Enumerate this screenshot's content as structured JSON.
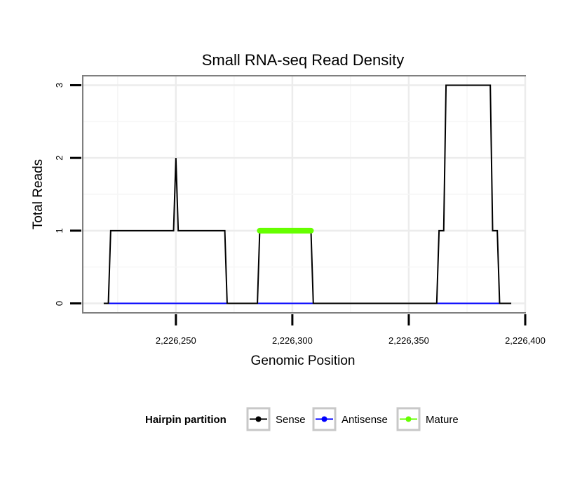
{
  "chart_data": {
    "type": "line",
    "title": "Small RNA-seq Read Density",
    "xlabel": "Genomic Position",
    "ylabel": "Total Reads",
    "xlim": [
      2226210,
      2226400
    ],
    "ylim": [
      -0.13,
      3.13
    ],
    "x_ticks": [
      2226250,
      2226300,
      2226350,
      2226400
    ],
    "x_tick_labels": [
      "2,226,250",
      "2,226,300",
      "2,226,350",
      "2,226,400"
    ],
    "y_ticks": [
      0,
      1,
      2,
      3
    ],
    "y_tick_labels": [
      "0",
      "1",
      "2",
      "3"
    ],
    "grid": true,
    "legend": {
      "title": "Hairpin partition",
      "position": "bottom",
      "entries": [
        "Sense",
        "Antisense",
        "Mature"
      ]
    },
    "series": [
      {
        "name": "Sense",
        "color": "#000000",
        "x": [
          2226219,
          2226221,
          2226222,
          2226248,
          2226249,
          2226250,
          2226251,
          2226252,
          2226271,
          2226272,
          2226285,
          2226286,
          2226308,
          2226309,
          2226362,
          2226363,
          2226365,
          2226366,
          2226367,
          2226385,
          2226386,
          2226388,
          2226389,
          2226390,
          2226394
        ],
        "values": [
          0,
          0,
          1,
          1,
          1,
          2,
          1,
          1,
          1,
          0,
          0,
          1,
          1,
          0,
          0,
          1,
          1,
          3,
          3,
          3,
          1,
          1,
          0,
          0,
          0
        ]
      },
      {
        "name": "Antisense",
        "color": "#0000ff",
        "x": [
          2226221,
          2226390
        ],
        "values": [
          0,
          0
        ]
      },
      {
        "name": "Mature",
        "color": "#66ff00",
        "x": [
          2226286,
          2226308
        ],
        "values": [
          1,
          1
        ]
      }
    ]
  }
}
